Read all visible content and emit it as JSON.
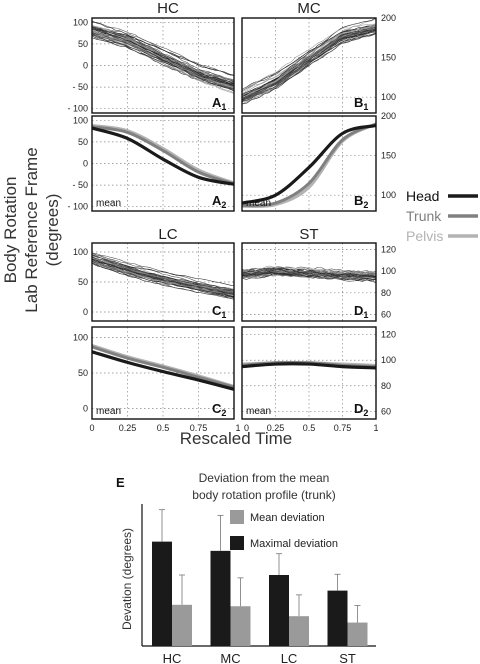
{
  "figure": {
    "y_axis_label": [
      "Body Rotation",
      "Lab Reference Frame",
      "(degrees)"
    ],
    "x_axis_label": "Rescaled Time",
    "x_ticks": [
      "0",
      "0.25",
      "0.5",
      "0.75",
      "1"
    ],
    "column_titles_top": [
      "HC",
      "MC"
    ],
    "column_titles_bottom": [
      "LC",
      "ST"
    ],
    "mean_label": "mean",
    "legend": [
      {
        "label": "Head",
        "color": "#1a1a1a"
      },
      {
        "label": "Trunk",
        "color": "#808080"
      },
      {
        "label": "Pelvis",
        "color": "#b3b3b3"
      }
    ]
  },
  "chart_data": [
    {
      "id": "A1",
      "type": "line",
      "panel_label": "A",
      "panel_sub": "1",
      "title": "HC",
      "ylim": [
        -110,
        110
      ],
      "yticks": [
        100,
        50,
        0,
        -50,
        -100
      ],
      "ytick_labels": [
        "100",
        "50",
        "0",
        "- 50",
        "- 100"
      ],
      "description": "individual trials, trunk rotation",
      "x": [
        0,
        0.25,
        0.5,
        0.75,
        1
      ],
      "series": [
        {
          "values": [
            85,
            60,
            20,
            -20,
            -45
          ]
        }
      ]
    },
    {
      "id": "B1",
      "type": "line",
      "panel_label": "B",
      "panel_sub": "1",
      "title": "MC",
      "ylim": [
        80,
        200
      ],
      "yticks": [
        200,
        150,
        100
      ],
      "ytick_labels": [
        "200",
        "150",
        "100"
      ],
      "x": [
        0,
        0.25,
        0.5,
        0.75,
        1
      ],
      "series": [
        {
          "values": [
            100,
            120,
            150,
            178,
            188
          ]
        }
      ]
    },
    {
      "id": "A2",
      "type": "line",
      "panel_label": "A",
      "panel_sub": "2",
      "ylim": [
        -110,
        110
      ],
      "yticks": [
        100,
        50,
        0,
        -50,
        -100
      ],
      "ytick_labels": [
        "100",
        "50",
        "0",
        "- 50",
        "- 100"
      ],
      "x": [
        0,
        0.25,
        0.5,
        0.75,
        1
      ],
      "series": [
        {
          "name": "Head",
          "values": [
            82,
            58,
            10,
            -32,
            -48
          ]
        },
        {
          "name": "Trunk",
          "values": [
            85,
            72,
            30,
            -20,
            -47
          ]
        },
        {
          "name": "Pelvis",
          "values": [
            88,
            76,
            35,
            -15,
            -45
          ]
        }
      ]
    },
    {
      "id": "B2",
      "type": "line",
      "panel_label": "B",
      "panel_sub": "2",
      "ylim": [
        80,
        200
      ],
      "yticks": [
        200,
        150,
        100
      ],
      "ytick_labels": [
        "200",
        "150",
        "100"
      ],
      "x": [
        0,
        0.25,
        0.5,
        0.75,
        1
      ],
      "series": [
        {
          "name": "Head",
          "values": [
            90,
            100,
            135,
            178,
            188
          ]
        },
        {
          "name": "Trunk",
          "values": [
            87,
            90,
            115,
            170,
            190
          ]
        },
        {
          "name": "Pelvis",
          "values": [
            86,
            88,
            110,
            168,
            190
          ]
        }
      ]
    },
    {
      "id": "C1",
      "type": "line",
      "panel_label": "C",
      "panel_sub": "1",
      "title": "LC",
      "ylim": [
        -15,
        115
      ],
      "yticks": [
        100,
        50,
        0
      ],
      "ytick_labels": [
        "100",
        "50",
        "0"
      ],
      "x": [
        0,
        0.25,
        0.5,
        0.75,
        1
      ],
      "series": [
        {
          "values": [
            88,
            70,
            55,
            42,
            30
          ]
        }
      ]
    },
    {
      "id": "D1",
      "type": "line",
      "panel_label": "D",
      "panel_sub": "1",
      "title": "ST",
      "ylim": [
        54,
        126
      ],
      "yticks": [
        120,
        100,
        80,
        60
      ],
      "ytick_labels": [
        "120",
        "100",
        "80",
        "60"
      ],
      "x": [
        0,
        0.25,
        0.5,
        0.75,
        1
      ],
      "series": [
        {
          "values": [
            97,
            100,
            98,
            96,
            95
          ]
        }
      ]
    },
    {
      "id": "C2",
      "type": "line",
      "panel_label": "C",
      "panel_sub": "2",
      "ylim": [
        -15,
        115
      ],
      "yticks": [
        100,
        50,
        0
      ],
      "ytick_labels": [
        "100",
        "50",
        "0"
      ],
      "x": [
        0,
        0.25,
        0.5,
        0.75,
        1
      ],
      "series": [
        {
          "name": "Head",
          "values": [
            80,
            65,
            52,
            40,
            27
          ]
        },
        {
          "name": "Trunk",
          "values": [
            87,
            71,
            58,
            44,
            30
          ]
        },
        {
          "name": "Pelvis",
          "values": [
            89,
            73,
            60,
            46,
            31
          ]
        }
      ]
    },
    {
      "id": "D2",
      "type": "line",
      "panel_label": "D",
      "panel_sub": "2",
      "ylim": [
        54,
        126
      ],
      "yticks": [
        120,
        100,
        80,
        60
      ],
      "ytick_labels": [
        "120",
        "100",
        "80",
        "60"
      ],
      "x": [
        0,
        0.25,
        0.5,
        0.75,
        1
      ],
      "series": [
        {
          "name": "Head",
          "values": [
            95,
            97,
            97,
            95,
            94
          ]
        },
        {
          "name": "Trunk",
          "values": [
            96,
            98,
            98,
            96,
            95
          ]
        },
        {
          "name": "Pelvis",
          "values": [
            97,
            98,
            98,
            97,
            96
          ]
        }
      ]
    },
    {
      "id": "E",
      "type": "bar",
      "panel_label": "E",
      "title": "Deviation from the mean body rotation profile (trunk)",
      "title_lines": [
        "Deviation from the mean",
        "body rotation profile (trunk)"
      ],
      "ylabel": "Devation (degrees)",
      "categories": [
        "HC",
        "MC",
        "LC",
        "ST"
      ],
      "ylim": [
        0,
        20
      ],
      "series": [
        {
          "name": "Maximal deviation",
          "color": "#1a1a1a",
          "values": [
            14.7,
            13.4,
            10.0,
            7.8
          ],
          "errors": [
            4.5,
            5.0,
            3.0,
            2.3
          ]
        },
        {
          "name": "Mean deviation",
          "color": "#9a9a9a",
          "values": [
            5.8,
            5.6,
            4.2,
            3.3
          ],
          "errors": [
            4.2,
            4.0,
            3.0,
            2.4
          ]
        }
      ],
      "legend_order": [
        "Mean deviation",
        "Maximal deviation"
      ]
    }
  ]
}
